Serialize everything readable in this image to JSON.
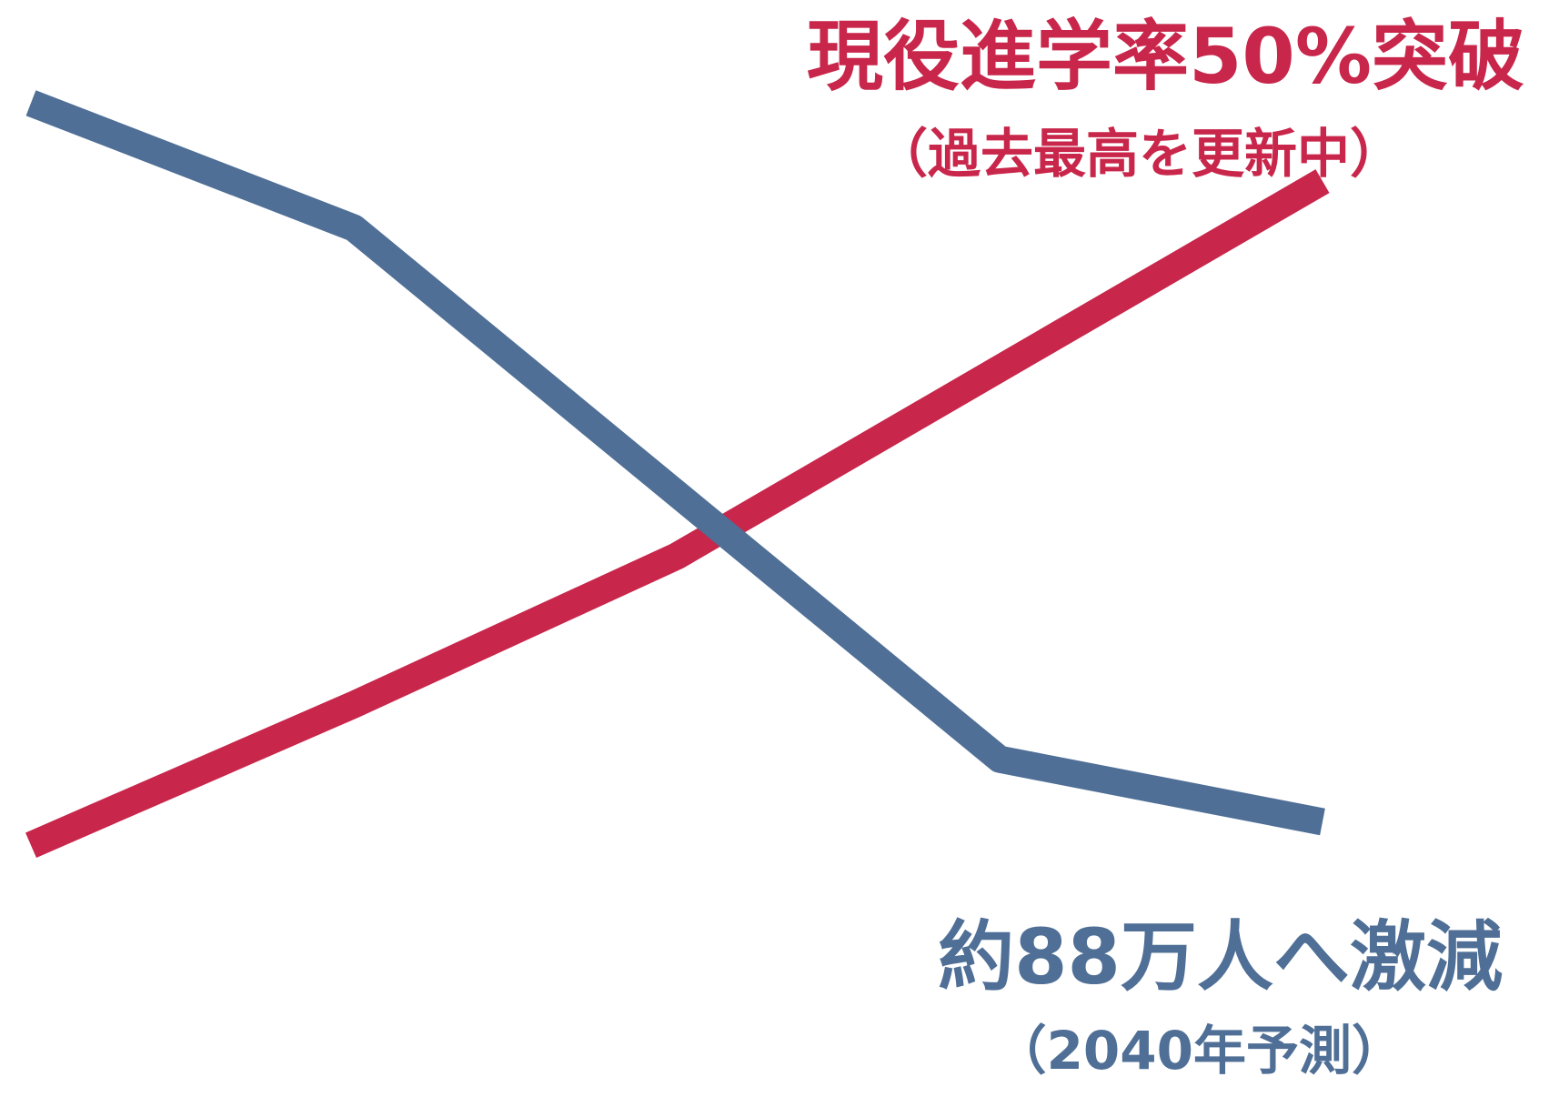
{
  "colors": {
    "background": "#ffffff",
    "rise": "#c8264a",
    "fall": "#4f6f96"
  },
  "annotations": {
    "rise_main": "現役進学率50%突破",
    "rise_sub": "（過去最高を更新中）",
    "fall_main": "約88万人へ激減",
    "fall_sub": "（2040年予測）"
  },
  "chart_data": {
    "type": "line",
    "title": "",
    "xlabel": "",
    "ylabel": "",
    "axes_visible": false,
    "grid": false,
    "legend": "none",
    "x": [
      0,
      1,
      2,
      3,
      4
    ],
    "xlim": [
      0,
      4
    ],
    "ylim": [
      0,
      100
    ],
    "series": [
      {
        "key": "fall",
        "color": "#4f6f96",
        "values": [
          98,
          82,
          48,
          14,
          6
        ]
      },
      {
        "key": "rise",
        "color": "#c8264a",
        "values": [
          3,
          21,
          40,
          64,
          88
        ]
      }
    ]
  }
}
